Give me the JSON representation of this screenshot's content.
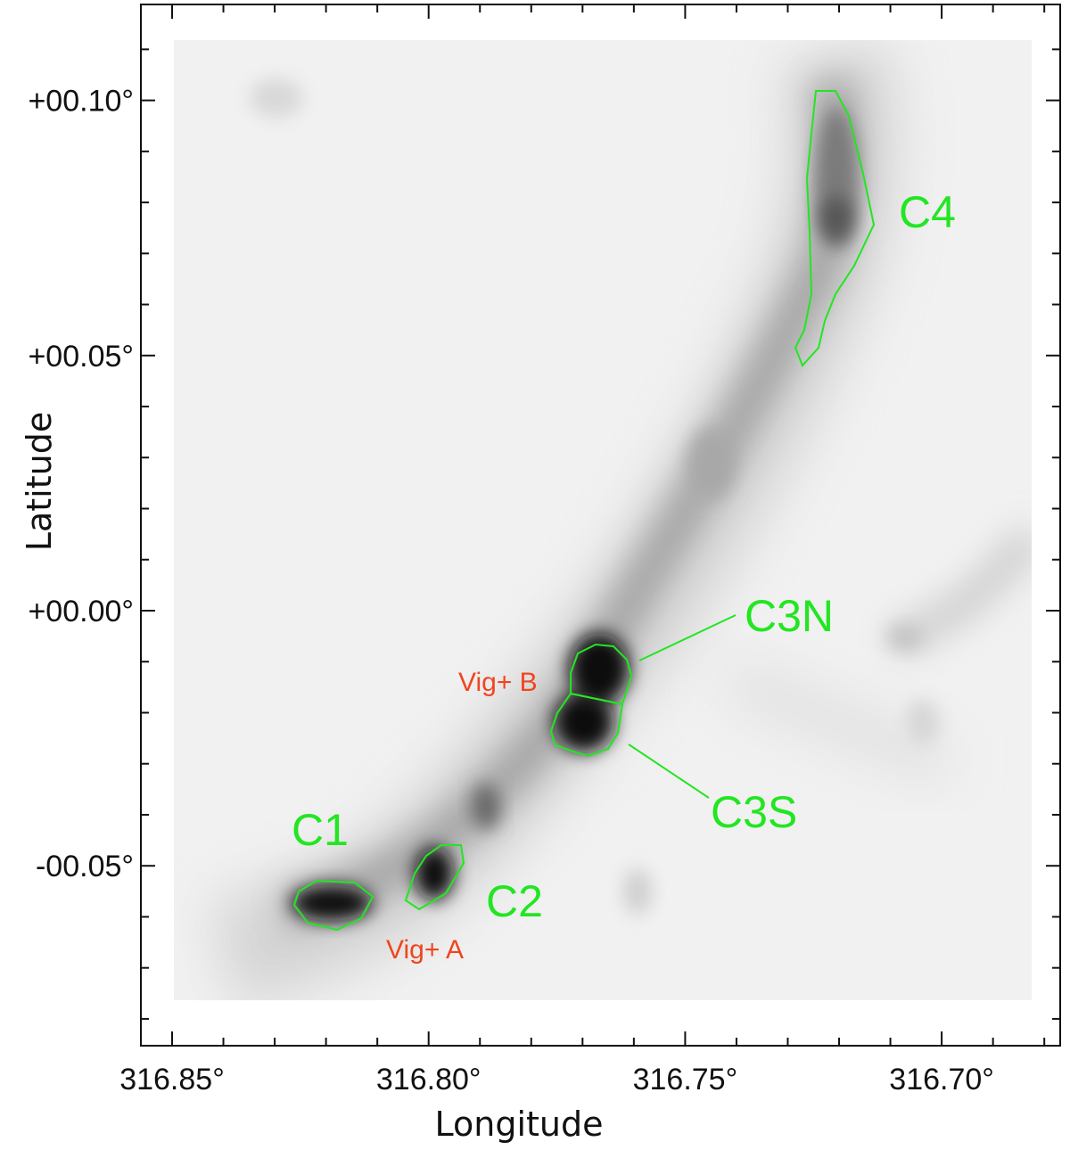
{
  "chart_data": {
    "type": "image",
    "xlabel": "Longitude",
    "ylabel": "Latitude",
    "x_ticks": [
      "316.85°",
      "316.80°",
      "316.75°",
      "316.70°"
    ],
    "x_tick_values": [
      316.85,
      316.8,
      316.75,
      316.7
    ],
    "y_ticks": [
      "+00.10°",
      "+00.05°",
      "+00.00°",
      "-00.05°"
    ],
    "y_tick_values": [
      0.1,
      0.05,
      0.0,
      -0.05
    ],
    "xlim": [
      316.855,
      316.682
    ],
    "ylim": [
      -0.085,
      0.117
    ],
    "x_reversed": true,
    "colormap": "grayscale (dark = high intensity)",
    "contour_color": "#22e622",
    "clumps": [
      {
        "name": "C1",
        "l": 316.8215,
        "b": -0.0575
      },
      {
        "name": "C2",
        "l": 316.8001,
        "b": -0.0533
      },
      {
        "name": "C3N",
        "l": 316.7676,
        "b": -0.0133
      },
      {
        "name": "C3S",
        "l": 316.771,
        "b": -0.0222
      },
      {
        "name": "C4",
        "l": 316.72,
        "b": 0.0769
      }
    ],
    "sources": [
      {
        "name": "Vig+ A",
        "l": 316.796,
        "b": -0.068
      },
      {
        "name": "Vig+ B",
        "l": 316.779,
        "b": -0.014
      }
    ],
    "source_color": "#f0451e"
  }
}
